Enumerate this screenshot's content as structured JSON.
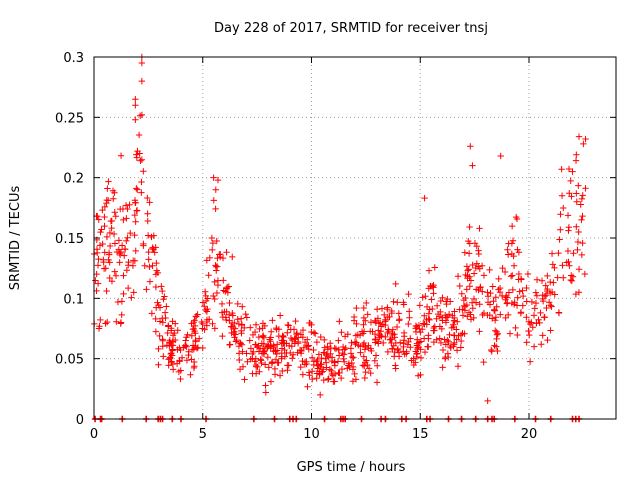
{
  "chart_data": {
    "type": "scatter",
    "title": "Day 228 of 2017, SRMTID for receiver tnsj",
    "xlabel": "GPS time / hours",
    "ylabel": "SRMTID / TECUs",
    "xlim": [
      0,
      24
    ],
    "ylim": [
      0,
      0.3
    ],
    "grid": true,
    "marker": "plus",
    "color": "#ff0000",
    "x_ticks": [
      0,
      5,
      10,
      15,
      20
    ],
    "x_tick_labels": [
      "0",
      "5",
      "10",
      "15",
      "20"
    ],
    "y_ticks": [
      0,
      0.05,
      0.1,
      0.15,
      0.2,
      0.25,
      0.3
    ],
    "y_tick_labels": [
      "0",
      "0.05",
      "0.1",
      "0.15",
      "0.2",
      "0.25",
      "0.3"
    ],
    "trend": [
      [
        0.0,
        0.12
      ],
      [
        0.5,
        0.14
      ],
      [
        1.0,
        0.15
      ],
      [
        1.5,
        0.14
      ],
      [
        2.0,
        0.17
      ],
      [
        2.3,
        0.19
      ],
      [
        2.6,
        0.14
      ],
      [
        3.0,
        0.09
      ],
      [
        3.5,
        0.06
      ],
      [
        4.0,
        0.05
      ],
      [
        4.5,
        0.055
      ],
      [
        5.0,
        0.08
      ],
      [
        5.5,
        0.13
      ],
      [
        6.0,
        0.1
      ],
      [
        6.5,
        0.08
      ],
      [
        7.0,
        0.06
      ],
      [
        8.0,
        0.055
      ],
      [
        9.0,
        0.06
      ],
      [
        10.0,
        0.055
      ],
      [
        10.5,
        0.045
      ],
      [
        11.0,
        0.05
      ],
      [
        12.0,
        0.06
      ],
      [
        13.0,
        0.07
      ],
      [
        14.0,
        0.075
      ],
      [
        15.0,
        0.06
      ],
      [
        15.5,
        0.09
      ],
      [
        16.0,
        0.07
      ],
      [
        16.5,
        0.08
      ],
      [
        17.5,
        0.12
      ],
      [
        18.0,
        0.09
      ],
      [
        18.5,
        0.08
      ],
      [
        19.0,
        0.11
      ],
      [
        19.5,
        0.12
      ],
      [
        20.0,
        0.09
      ],
      [
        20.5,
        0.08
      ],
      [
        21.0,
        0.1
      ],
      [
        21.5,
        0.14
      ],
      [
        22.0,
        0.15
      ],
      [
        22.6,
        0.17
      ]
    ],
    "notable_points": [
      {
        "x": 2.2,
        "y": 0.3
      },
      {
        "x": 2.2,
        "y": 0.295
      },
      {
        "x": 2.2,
        "y": 0.28
      },
      {
        "x": 1.9,
        "y": 0.265
      },
      {
        "x": 1.9,
        "y": 0.26
      },
      {
        "x": 1.9,
        "y": 0.248
      },
      {
        "x": 2.2,
        "y": 0.252
      },
      {
        "x": 2.0,
        "y": 0.222
      },
      {
        "x": 2.1,
        "y": 0.22
      },
      {
        "x": 5.5,
        "y": 0.2
      },
      {
        "x": 5.7,
        "y": 0.198
      },
      {
        "x": 5.6,
        "y": 0.19
      },
      {
        "x": 17.3,
        "y": 0.226
      },
      {
        "x": 18.7,
        "y": 0.218
      },
      {
        "x": 17.4,
        "y": 0.21
      },
      {
        "x": 22.3,
        "y": 0.234
      },
      {
        "x": 22.6,
        "y": 0.232
      },
      {
        "x": 22.5,
        "y": 0.228
      },
      {
        "x": 15.2,
        "y": 0.183
      },
      {
        "x": 21.5,
        "y": 0.207
      },
      {
        "x": 22.0,
        "y": 0.205
      },
      {
        "x": 18.1,
        "y": 0.015
      },
      {
        "x": 10.4,
        "y": 0.02
      },
      {
        "x": 7.9,
        "y": 0.022
      }
    ],
    "zero_points_x": [
      0.05,
      0.3,
      0.35,
      1.3,
      2.4,
      2.95,
      3.05,
      3.15,
      3.6,
      4.0,
      5.15,
      7.35,
      8.3,
      9.0,
      9.15,
      9.3,
      10.6,
      11.35,
      11.45,
      11.55,
      12.3,
      13.2,
      13.4,
      14.15,
      14.35,
      15.3,
      15.45,
      16.3,
      16.9,
      17.55,
      18.1,
      18.3,
      18.4,
      19.35,
      20.3,
      21.0,
      22.0,
      22.15,
      22.3
    ]
  }
}
